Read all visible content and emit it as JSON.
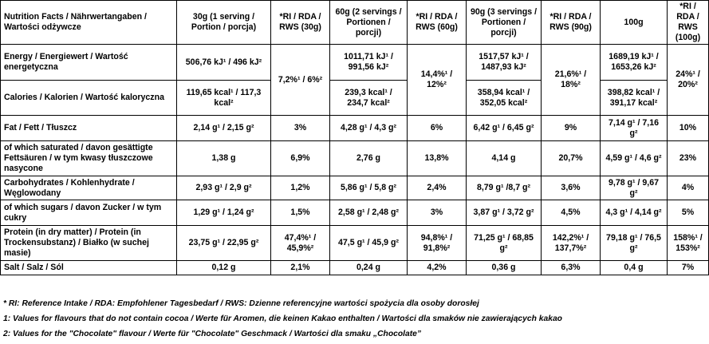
{
  "headers": {
    "nutrient": "Nutrition Facts / Nährwertangaben / Wartości odżywcze",
    "g30": "30g (1 serving / Portion / porcja)",
    "ri30": "*RI / RDA / RWS (30g)",
    "g60": "60g (2 servings / Portionen / porcji)",
    "ri60": "*RI / RDA / RWS (60g)",
    "g90": "90g (3 servings / Portionen / porcji)",
    "ri90": "*RI / RDA / RWS (90g)",
    "g100": "100g",
    "ri100": "*RI / RDA / RWS (100g)"
  },
  "energy": {
    "label": "Energy / Energiewert / Wartość energetyczna",
    "g30": "506,76 kJ¹ / 496 kJ²",
    "g60": "1011,71 kJ¹ / 991,56 kJ²",
    "g90": "1517,57 kJ¹ / 1487,93 kJ²",
    "g100": "1689,19 kJ¹ / 1653,26 kJ²"
  },
  "calories": {
    "label": "Calories / Kalorien / Wartość kaloryczna",
    "g30": "119,65 kcal¹ / 117,3 kcal²",
    "g60": "239,3 kcal¹ / 234,7 kcal²",
    "g90": "358,94 kcal¹ / 352,05 kcal²",
    "g100": "398,82 kcal¹ / 391,17 kcal²"
  },
  "energy_ri": {
    "ri30": "7,2%¹ / 6%²",
    "ri60": "14,4%¹ / 12%²",
    "ri90": "21,6%¹ / 18%²",
    "ri100": "24%¹ / 20%²"
  },
  "rows": [
    {
      "label": "Fat / Fett / Tłuszcz",
      "g30": "2,14 g¹ / 2,15 g²",
      "ri30": "3%",
      "g60": "4,28 g¹ / 4,3 g²",
      "ri60": "6%",
      "g90": "6,42 g¹ / 6,45 g²",
      "ri90": "9%",
      "g100": "7,14 g¹ / 7,16 g²",
      "ri100": "10%"
    },
    {
      "label": "of which saturated / davon gesättigte Fettsäuren / w tym kwasy tłuszczowe nasycone",
      "g30": "1,38 g",
      "ri30": "6,9%",
      "g60": "2,76 g",
      "ri60": "13,8%",
      "g90": "4,14 g",
      "ri90": "20,7%",
      "g100": "4,59 g¹ / 4,6 g²",
      "ri100": "23%"
    },
    {
      "label": "Carbohydrates / Kohlenhydrate / Węglowodany",
      "g30": "2,93 g¹ / 2,9 g²",
      "ri30": "1,2%",
      "g60": "5,86 g¹ / 5,8 g²",
      "ri60": "2,4%",
      "g90": "8,79 g¹ /8,7 g²",
      "ri90": "3,6%",
      "g100": "9,78 g¹ / 9,67 g²",
      "ri100": "4%"
    },
    {
      "label": "of which sugars / davon Zucker / w tym cukry",
      "g30": "1,29 g¹ / 1,24 g²",
      "ri30": "1,5%",
      "g60": "2,58 g¹ / 2,48 g²",
      "ri60": "3%",
      "g90": "3,87 g¹ / 3,72 g²",
      "ri90": "4,5%",
      "g100": "4,3 g¹ / 4,14 g²",
      "ri100": "5%"
    },
    {
      "label": "Protein (in dry matter) / Protein (in Trockensubstanz) / Białko (w suchej masie)",
      "g30": "23,75 g¹ / 22,95 g²",
      "ri30": "47,4%¹ / 45,9%²",
      "g60": "47,5 g¹ / 45,9 g²",
      "ri60": "94,8%¹ / 91,8%²",
      "g90": "71,25 g¹ / 68,85 g²",
      "ri90": "142,2%¹ / 137,7%²",
      "g100": "79,18 g¹ / 76,5 g²",
      "ri100": "158%¹ / 153%²"
    },
    {
      "label": "Salt / Salz / Sól",
      "g30": "0,12 g",
      "ri30": "2,1%",
      "g60": "0,24 g",
      "ri60": "4,2%",
      "g90": "0,36 g",
      "ri90": "6,3%",
      "g100": "0,4 g",
      "ri100": "7%"
    }
  ],
  "footnotes": {
    "ri": "* RI: Reference Intake / RDA: Empfohlener Tagesbedarf / RWS: Dzienne referencyjne wartości spożycia dla osoby dorosłej",
    "note1": "1: Values for flavours that do not contain cocoa / Werte für Aromen, die keinen Kakao enthalten / Wartości dla smaków nie zawierających kakao",
    "note2": "2: Values for the \"Chocolate\" flavour / Werte für \"Chocolate\" Geschmack / Wartości dla smaku „Chocolate”"
  }
}
